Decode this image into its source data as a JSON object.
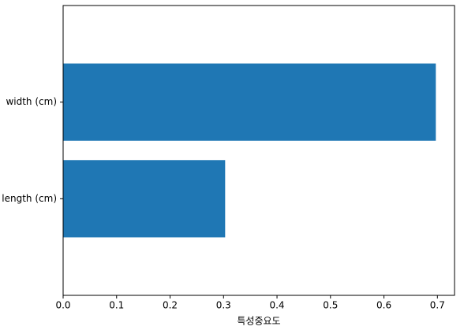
{
  "chart_data": {
    "type": "barh",
    "x_label": "특성중요도",
    "categories": [
      "length (cm)",
      "width (cm)"
    ],
    "values": [
      0.303,
      0.697
    ],
    "color": "#1f77b4",
    "xlim": [
      0,
      0.732
    ],
    "xticks": [
      {
        "value": 0,
        "label": "0.0"
      },
      0.1,
      0.2,
      0.3,
      0.4,
      0.5,
      0.6,
      0.7
    ]
  }
}
